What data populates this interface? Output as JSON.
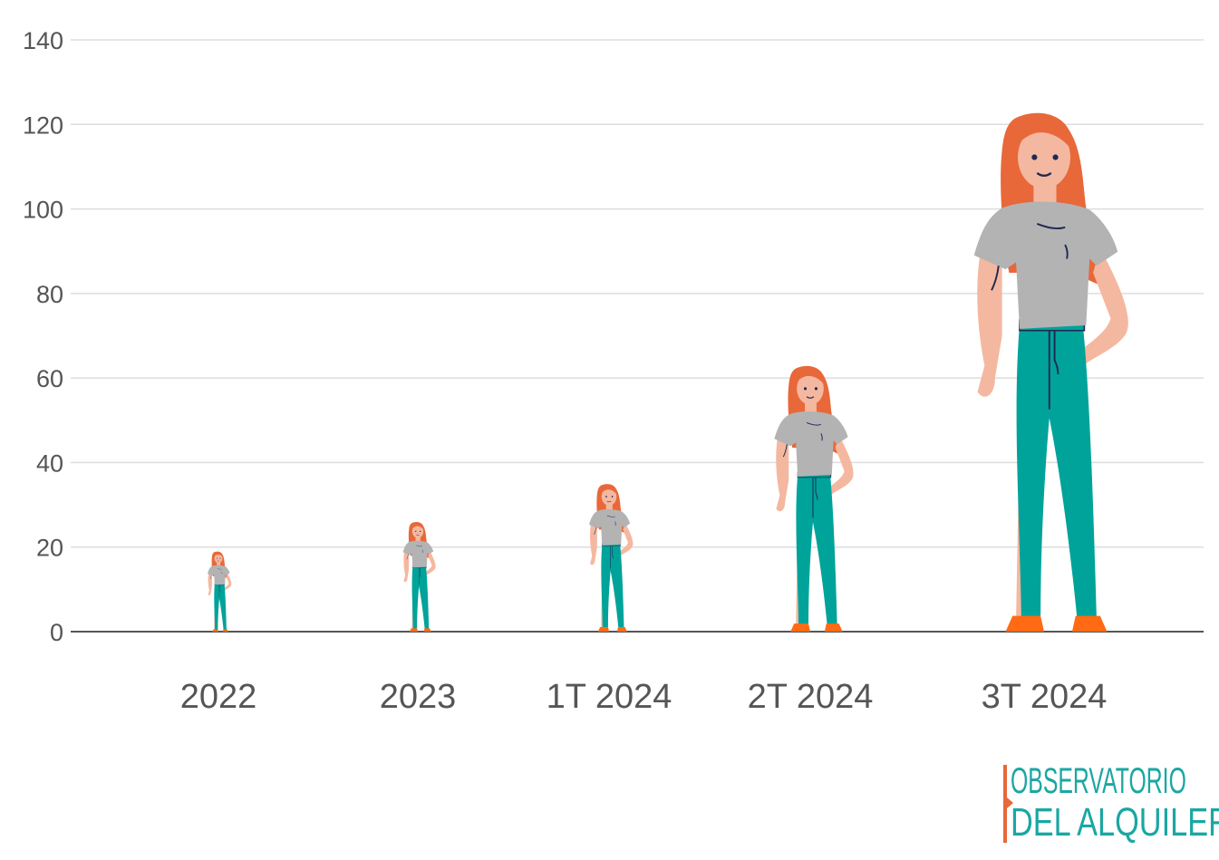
{
  "chart_data": {
    "type": "bar",
    "marker": "woman-figure",
    "categories": [
      "2022",
      "2023",
      "1T 2024",
      "2T 2024",
      "3T 2024"
    ],
    "values": [
      19,
      26,
      35,
      63,
      123
    ],
    "ylim": [
      0,
      140
    ],
    "yticks": [
      0,
      20,
      40,
      60,
      80,
      100,
      120,
      140
    ],
    "grid": true,
    "title": "",
    "xlabel": "",
    "ylabel": ""
  },
  "logo": {
    "line1": "OBSERVATORIO",
    "line2": "DEL ALQUILER"
  },
  "colors": {
    "grid": "#dddddd",
    "axis": "#555555",
    "hair": "#e8683a",
    "shirt": "#b3b3b3",
    "pants": "#00a39a",
    "skin": "#f4b8a0",
    "shoes": "#ff6a13",
    "outline": "#1f2a52",
    "logo_text": "#1aa7a3",
    "logo_accent": "#e8683a"
  }
}
